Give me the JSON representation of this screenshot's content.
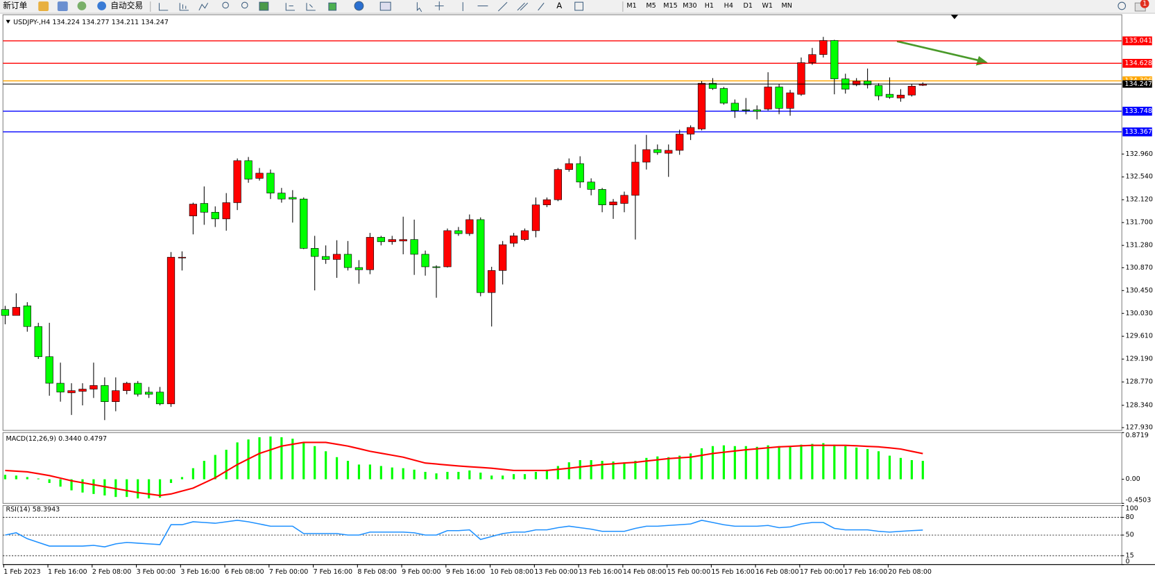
{
  "toolbar": {
    "new_order": "新订单",
    "auto_trading": "自动交易",
    "timeframes": [
      "M1",
      "M5",
      "M15",
      "M30",
      "H1",
      "H4",
      "D1",
      "W1",
      "MN"
    ],
    "notifications": 1
  },
  "chart_data": [
    {
      "type": "candlestick",
      "title": "USDJPY-,H4",
      "up_color": "#ff0000",
      "down_color": "#00ff00",
      "categories": [
        "1 Feb 2023",
        null,
        null,
        null,
        "1 Feb 16:00",
        null,
        null,
        null,
        "2 Feb 08:00",
        null,
        null,
        null,
        "3 Feb 00:00",
        null,
        null,
        null,
        "3 Feb 16:00",
        null,
        null,
        null,
        "6 Feb 08:00",
        null,
        null,
        null,
        "7 Feb 00:00",
        null,
        null,
        null,
        "7 Feb 16:00",
        null,
        null,
        null,
        "8 Feb 08:00",
        null,
        null,
        null,
        "9 Feb 00:00",
        null,
        null,
        null,
        "9 Feb 16:00",
        null,
        null,
        null,
        "10 Feb 08:00",
        null,
        null,
        null,
        "13 Feb 00:00",
        null,
        null,
        null,
        "13 Feb 16:00",
        null,
        null,
        null,
        "14 Feb 08:00",
        null,
        null,
        null,
        "15 Feb 00:00",
        null,
        null,
        null,
        "15 Feb 16:00",
        null,
        null,
        null,
        "16 Feb 08:00",
        null,
        null,
        null,
        "17 Feb 00:00",
        null,
        null,
        null,
        "17 Feb 16:00",
        null,
        null,
        null,
        "20 Feb 08:00",
        null,
        null,
        null
      ],
      "open": [
        130.101,
        129.993,
        130.169,
        129.789,
        129.234,
        128.746,
        128.57,
        128.597,
        128.638,
        128.705,
        128.407,
        128.61,
        128.746,
        128.583,
        128.583,
        128.367,
        131.049,
        131.822,
        132.052,
        131.89,
        131.768,
        132.066,
        132.838,
        132.513,
        132.608,
        132.242,
        132.161,
        132.133,
        131.226,
        131.077,
        131.022,
        131.117,
        130.873,
        130.833,
        131.429,
        131.348,
        131.361,
        131.388,
        131.117,
        130.887,
        130.887,
        131.551,
        131.497,
        131.754,
        130.413,
        130.819,
        131.32,
        131.388,
        131.551,
        132.025,
        132.12,
        132.675,
        132.784,
        132.445,
        132.31,
        132.025,
        132.052,
        132.201,
        132.811,
        133.041,
        132.974,
        133.028,
        133.326,
        133.421,
        134.261,
        134.166,
        133.895,
        133.773,
        133.773,
        133.787,
        134.193,
        133.8,
        134.058,
        134.64,
        134.789,
        135.047,
        134.342,
        134.234,
        134.301,
        134.22,
        134.058,
        133.99,
        134.044,
        134.224
      ],
      "high": [
        130.169,
        130.399,
        130.236,
        129.857,
        129.857,
        129.125,
        128.746,
        128.746,
        129.125,
        128.854,
        128.854,
        128.773,
        128.787,
        128.678,
        128.678,
        131.158,
        131.171,
        132.066,
        132.364,
        131.998,
        132.242,
        132.879,
        132.906,
        132.703,
        132.675,
        132.337,
        132.296,
        132.161,
        131.456,
        131.28,
        131.375,
        131.361,
        131.009,
        131.51,
        131.456,
        131.456,
        131.808,
        131.754,
        131.185,
        130.914,
        131.591,
        131.619,
        131.849,
        131.795,
        130.887,
        131.361,
        131.51,
        131.591,
        132.161,
        132.161,
        132.703,
        132.879,
        132.919,
        132.513,
        132.337,
        132.133,
        132.269,
        133.136,
        133.312,
        133.136,
        133.136,
        133.407,
        133.488,
        134.301,
        134.356,
        134.193,
        133.963,
        133.99,
        133.854,
        134.464,
        134.247,
        134.139,
        134.735,
        134.911,
        135.114,
        135.06,
        134.437,
        134.356,
        134.532,
        134.261,
        134.369,
        134.152,
        134.247,
        134.277
      ],
      "low": [
        129.83,
        129.993,
        129.694,
        129.193,
        128.516,
        128.407,
        128.163,
        128.339,
        128.475,
        128.068,
        128.231,
        128.543,
        128.502,
        128.475,
        128.339,
        128.312,
        130.819,
        131.483,
        131.659,
        131.619,
        131.551,
        131.93,
        132.432,
        132.472,
        132.133,
        132.066,
        131.7,
        131.212,
        130.453,
        130.941,
        130.684,
        130.819,
        130.575,
        130.751,
        131.28,
        131.293,
        131.117,
        130.738,
        130.724,
        130.318,
        130.873,
        131.456,
        131.456,
        130.345,
        129.789,
        130.562,
        131.253,
        131.361,
        131.429,
        131.984,
        132.093,
        132.635,
        132.337,
        132.201,
        131.89,
        131.768,
        131.89,
        131.388,
        132.675,
        132.946,
        132.54,
        132.946,
        133.217,
        133.394,
        134.139,
        133.868,
        133.624,
        133.692,
        133.597,
        133.759,
        133.692,
        133.665,
        134.03,
        134.6,
        134.735,
        134.058,
        134.071,
        134.207,
        134.166,
        133.949,
        133.976,
        133.922,
        134.017,
        134.211
      ],
      "close": [
        129.993,
        130.142,
        129.789,
        129.234,
        128.746,
        128.583,
        128.61,
        128.638,
        128.705,
        128.407,
        128.61,
        128.746,
        128.543,
        128.543,
        128.367,
        131.063,
        131.063,
        132.039,
        131.89,
        131.768,
        132.066,
        132.838,
        132.499,
        132.608,
        132.242,
        132.133,
        132.133,
        131.226,
        131.077,
        131.022,
        131.117,
        130.873,
        130.833,
        131.429,
        131.348,
        131.388,
        131.388,
        131.117,
        130.887,
        130.873,
        131.551,
        131.497,
        131.754,
        130.413,
        130.819,
        131.293,
        131.456,
        131.551,
        132.025,
        132.12,
        132.675,
        132.784,
        132.445,
        132.31,
        132.025,
        132.079,
        132.201,
        132.811,
        133.041,
        132.987,
        133.028,
        133.326,
        133.448,
        134.261,
        134.166,
        133.895,
        133.759,
        133.759,
        133.746,
        134.193,
        133.8,
        134.085,
        134.64,
        134.789,
        135.047,
        134.342,
        134.152,
        134.301,
        134.234,
        134.03,
        134.003,
        134.044,
        134.207,
        134.247
      ],
      "ylim": [
        127.879,
        135.521
      ],
      "yticks": [
        {
          "value": 127.93,
          "label": "127.930"
        },
        {
          "value": 128.34,
          "label": "128.340"
        },
        {
          "value": 128.77,
          "label": "128.770"
        },
        {
          "value": 129.19,
          "label": "129.190"
        },
        {
          "value": 129.61,
          "label": "129.610"
        },
        {
          "value": 130.03,
          "label": "130.030"
        },
        {
          "value": 130.45,
          "label": "130.450"
        },
        {
          "value": 130.87,
          "label": "130.870"
        },
        {
          "value": 131.28,
          "label": "131.280"
        },
        {
          "value": 131.7,
          "label": "131.700"
        },
        {
          "value": 132.12,
          "label": "132.120"
        },
        {
          "value": 132.54,
          "label": "132.540"
        },
        {
          "value": 132.96,
          "label": "132.960"
        }
      ],
      "levels": [
        {
          "value": 135.041,
          "color": "#ff0000"
        },
        {
          "value": 134.628,
          "color": "#ff0000"
        },
        {
          "value": 134.306,
          "color": "#ffa500"
        },
        {
          "value": 133.748,
          "color": "#0000ff"
        },
        {
          "value": 133.367,
          "color": "#0000ff"
        }
      ]
    },
    {
      "type": "macd",
      "title": "MACD(12,26,9)",
      "readout": [
        {
          "value": 0.344,
          "label": "0.3440"
        },
        0.4797
      ],
      "histogram": {
        "color": "#00ff00",
        "values": [
          0.083,
          0.069,
          0.041,
          0.014,
          -0.069,
          -0.138,
          -0.207,
          -0.248,
          -0.275,
          -0.303,
          -0.331,
          -0.331,
          -0.358,
          -0.358,
          -0.344,
          -0.069,
          0.041,
          0.207,
          0.344,
          0.455,
          0.551,
          0.689,
          0.744,
          0.785,
          0.799,
          0.785,
          0.758,
          0.689,
          0.62,
          0.523,
          0.413,
          0.344,
          0.275,
          0.275,
          0.248,
          0.22,
          0.207,
          0.179,
          0.138,
          0.11,
          0.138,
          0.138,
          0.165,
          0.124,
          0.069,
          0.069,
          0.096,
          0.096,
          0.138,
          0.179,
          0.248,
          0.317,
          0.358,
          0.358,
          0.344,
          0.331,
          0.317,
          0.344,
          0.399,
          0.427,
          0.413,
          0.441,
          0.482,
          0.579,
          0.62,
          0.634,
          0.62,
          0.62,
          0.606,
          0.634,
          0.62,
          0.62,
          0.647,
          0.661,
          0.675,
          0.647,
          0.62,
          0.592,
          0.565,
          0.523,
          0.441,
          0.399,
          0.358,
          0.344
        ]
      },
      "signal": {
        "color": "#ff0000",
        "values": [
          0.165,
          0.152,
          0.138,
          0.104,
          0.069,
          0.021,
          -0.028,
          -0.065,
          -0.101,
          -0.138,
          -0.175,
          -0.211,
          -0.248,
          -0.276,
          -0.303,
          -0.275,
          -0.22,
          -0.165,
          -0.069,
          0.028,
          0.152,
          0.275,
          0.379,
          0.482,
          0.551,
          0.62,
          0.655,
          0.689,
          0.689,
          0.689,
          0.655,
          0.62,
          0.572,
          0.523,
          0.486,
          0.45,
          0.413,
          0.358,
          0.303,
          0.285,
          0.266,
          0.248,
          0.234,
          0.221,
          0.207,
          0.186,
          0.165,
          0.165,
          0.165,
          0.165,
          0.186,
          0.207,
          0.23,
          0.252,
          0.275,
          0.289,
          0.303,
          0.317,
          0.34,
          0.363,
          0.386,
          0.4,
          0.413,
          0.448,
          0.482,
          0.505,
          0.528,
          0.551,
          0.569,
          0.588,
          0.606,
          0.615,
          0.625,
          0.634,
          0.634,
          0.634,
          0.634,
          0.625,
          0.615,
          0.606,
          0.586,
          0.565,
          0.522,
          0.4797
        ]
      },
      "ylim": [
        -0.4503,
        0.8719
      ],
      "yticks": [
        0.8719,
        {
          "value": 0,
          "label": "0.00"
        },
        -0.4503
      ]
    },
    {
      "type": "line",
      "title": "RSI(14)",
      "readout": 58.3943,
      "color": "#1e90ff",
      "values": [
        50,
        53.8,
        43.8,
        37.5,
        31.3,
        31.3,
        31.3,
        31.3,
        32.5,
        30,
        35,
        37.5,
        36.3,
        35,
        33.8,
        67.5,
        67.5,
        72.5,
        71.3,
        70,
        72.5,
        75,
        72.5,
        68.8,
        65,
        65,
        65,
        52.5,
        52.5,
        52.5,
        52.5,
        50,
        50,
        55,
        55,
        55,
        55,
        53.8,
        50,
        50,
        57.5,
        57.5,
        58.8,
        42.5,
        47.5,
        52.5,
        55,
        55,
        58.8,
        58.8,
        62.5,
        65,
        62.5,
        60,
        56.3,
        56.3,
        56.3,
        61.3,
        65,
        65,
        66.3,
        67.5,
        68.8,
        75,
        71.3,
        67.5,
        65,
        65,
        65,
        66.3,
        62.5,
        63.8,
        68.8,
        71.3,
        71.3,
        61.3,
        58.8,
        58.8,
        58.8,
        56.3,
        55,
        56.3,
        57.5,
        58.3943
      ],
      "ylim": [
        0,
        100
      ],
      "yticks": [
        100,
        80,
        50,
        15,
        0
      ],
      "levels": [
        80,
        50,
        15
      ]
    }
  ]
}
